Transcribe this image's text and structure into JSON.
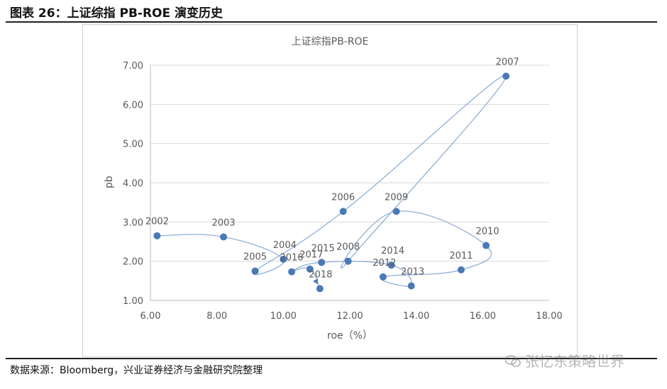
{
  "header": {
    "title": "图表 26：上证综指 PB-ROE 演变历史"
  },
  "source": {
    "text": "数据来源：Bloomberg，兴业证券经济与金融研究院整理"
  },
  "watermark": {
    "text": "张忆东策略世界",
    "icon": "wechat-icon"
  },
  "colors": {
    "series": "#4a7ab5",
    "line": "#8fb0d6",
    "grid": "#d9d9d9",
    "text": "#595959"
  },
  "chart_data": {
    "type": "scatter",
    "title": "上证综指PB-ROE",
    "xlabel": "roe（%）",
    "ylabel": "pb",
    "xlim": [
      6,
      18
    ],
    "ylim": [
      1,
      7
    ],
    "xticks": [
      "6.00",
      "8.00",
      "10.00",
      "12.00",
      "14.00",
      "16.00",
      "18.00"
    ],
    "yticks": [
      "1.00",
      "2.00",
      "3.00",
      "4.00",
      "5.00",
      "6.00",
      "7.00"
    ],
    "grid": "y",
    "connected": true,
    "points": [
      {
        "label": "2002",
        "x": 6.2,
        "y": 2.65
      },
      {
        "label": "2003",
        "x": 8.2,
        "y": 2.62
      },
      {
        "label": "2004",
        "x": 10.0,
        "y": 2.05
      },
      {
        "label": "2005",
        "x": 9.15,
        "y": 1.75
      },
      {
        "label": "2006",
        "x": 11.8,
        "y": 3.27
      },
      {
        "label": "2007",
        "x": 16.7,
        "y": 6.72
      },
      {
        "label": "2008",
        "x": 11.95,
        "y": 2.0
      },
      {
        "label": "2009",
        "x": 13.4,
        "y": 3.27
      },
      {
        "label": "2010",
        "x": 16.1,
        "y": 2.4
      },
      {
        "label": "2011",
        "x": 15.35,
        "y": 1.78
      },
      {
        "label": "2012",
        "x": 13.0,
        "y": 1.6
      },
      {
        "label": "2013",
        "x": 13.85,
        "y": 1.37
      },
      {
        "label": "2014",
        "x": 13.25,
        "y": 1.9
      },
      {
        "label": "2015",
        "x": 11.15,
        "y": 1.97
      },
      {
        "label": "2016",
        "x": 10.25,
        "y": 1.73
      },
      {
        "label": "2017",
        "x": 10.8,
        "y": 1.8
      },
      {
        "label": "2018",
        "x": 11.1,
        "y": 1.3
      }
    ]
  }
}
